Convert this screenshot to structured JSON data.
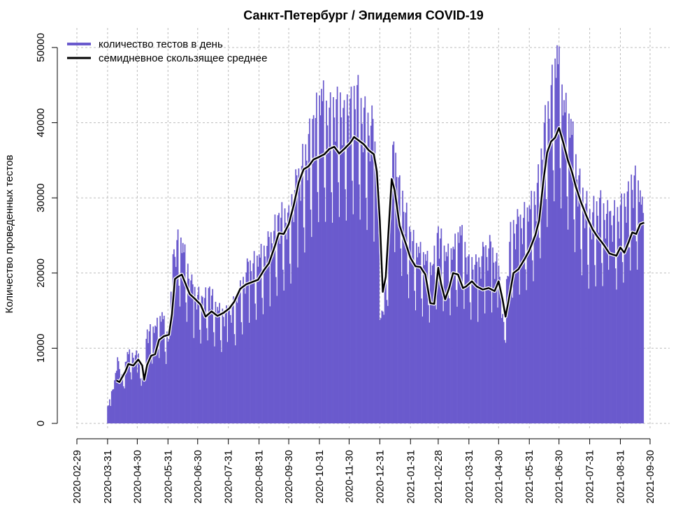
{
  "chart_data": {
    "type": "bar",
    "title": "Санкт-Петербург / Эпидемия COVID-19",
    "xlabel": "",
    "ylabel": "Количество проведенных тестов",
    "ylim": [
      0,
      50000
    ],
    "y_ticks": [
      0,
      10000,
      20000,
      30000,
      40000,
      50000
    ],
    "x_ticks": [
      "2020-02-29",
      "2020-03-31",
      "2020-04-30",
      "2020-05-31",
      "2020-06-30",
      "2020-07-31",
      "2020-08-31",
      "2020-09-30",
      "2020-10-31",
      "2020-11-30",
      "2020-12-31",
      "2021-01-31",
      "2021-02-28",
      "2021-03-31",
      "2021-04-30",
      "2021-05-31",
      "2021-06-30",
      "2021-07-31",
      "2021-08-31",
      "2021-09-30"
    ],
    "xlim": [
      "2020-02-29",
      "2021-09-30"
    ],
    "grid": true,
    "legend_position": "top-left",
    "colors": {
      "bars": "#6a5acd",
      "average": "#000000"
    },
    "series": [
      {
        "name": "количество тестов в день",
        "kind": "bar",
        "description_points": [
          [
            "2020-03-31",
            2300
          ],
          [
            "2020-04-01",
            2400
          ],
          [
            "2020-04-02",
            3200
          ],
          [
            "2020-04-09",
            7000
          ],
          [
            "2020-04-10",
            8800
          ],
          [
            "2020-04-15",
            6200
          ],
          [
            "2020-04-20",
            9500
          ],
          [
            "2020-05-01",
            9300
          ],
          [
            "2020-05-04",
            5000
          ],
          [
            "2020-05-10",
            12500
          ],
          [
            "2020-05-18",
            13000
          ],
          [
            "2020-05-25",
            14800
          ],
          [
            "2020-06-01",
            11200
          ],
          [
            "2020-06-05",
            22500
          ],
          [
            "2020-06-10",
            25800
          ],
          [
            "2020-06-15",
            24000
          ],
          [
            "2020-06-25",
            18500
          ],
          [
            "2020-07-05",
            16800
          ],
          [
            "2020-07-12",
            18200
          ],
          [
            "2020-07-20",
            15500
          ],
          [
            "2020-07-31",
            15000
          ],
          [
            "2020-08-10",
            17500
          ],
          [
            "2020-08-20",
            21500
          ],
          [
            "2020-08-31",
            22500
          ],
          [
            "2020-09-10",
            24800
          ],
          [
            "2020-09-20",
            28000
          ],
          [
            "2020-09-30",
            29000
          ],
          [
            "2020-10-08",
            33000
          ],
          [
            "2020-10-20",
            38500
          ],
          [
            "2020-10-25",
            41000
          ],
          [
            "2020-11-02",
            44500
          ],
          [
            "2020-11-10",
            42000
          ],
          [
            "2020-11-18",
            44800
          ],
          [
            "2020-11-25",
            43000
          ],
          [
            "2020-12-02",
            44800
          ],
          [
            "2020-12-08",
            45000
          ],
          [
            "2020-12-15",
            42000
          ],
          [
            "2020-12-24",
            40500
          ],
          [
            "2020-12-28",
            34500
          ],
          [
            "2021-01-01",
            14000
          ],
          [
            "2021-01-05",
            18000
          ],
          [
            "2021-01-10",
            30000
          ],
          [
            "2021-01-14",
            37500
          ],
          [
            "2021-01-20",
            33000
          ],
          [
            "2021-01-31",
            25500
          ],
          [
            "2021-02-08",
            23500
          ],
          [
            "2021-02-15",
            22500
          ],
          [
            "2021-02-22",
            21000
          ],
          [
            "2021-02-28",
            26200
          ],
          [
            "2021-03-08",
            22800
          ],
          [
            "2021-03-15",
            23500
          ],
          [
            "2021-03-22",
            26200
          ],
          [
            "2021-03-31",
            22500
          ],
          [
            "2021-04-08",
            21500
          ],
          [
            "2021-04-15",
            23500
          ],
          [
            "2021-04-22",
            24200
          ],
          [
            "2021-04-30",
            21000
          ],
          [
            "2021-05-05",
            13500
          ],
          [
            "2021-05-12",
            26800
          ],
          [
            "2021-05-20",
            27500
          ],
          [
            "2021-05-31",
            29000
          ],
          [
            "2021-06-08",
            32000
          ],
          [
            "2021-06-15",
            40000
          ],
          [
            "2021-06-22",
            45000
          ],
          [
            "2021-06-28",
            50300
          ],
          [
            "2021-07-05",
            43000
          ],
          [
            "2021-07-12",
            40500
          ],
          [
            "2021-07-20",
            33000
          ],
          [
            "2021-07-31",
            28500
          ],
          [
            "2021-08-10",
            30000
          ],
          [
            "2021-08-20",
            28200
          ],
          [
            "2021-08-31",
            29000
          ],
          [
            "2021-09-08",
            32200
          ],
          [
            "2021-09-15",
            34300
          ],
          [
            "2021-09-20",
            31000
          ],
          [
            "2021-09-23",
            28000
          ]
        ]
      },
      {
        "name": "семидневное скользящее среднее",
        "kind": "line",
        "points": [
          [
            "2020-04-09",
            5700
          ],
          [
            "2020-04-12",
            5500
          ],
          [
            "2020-04-18",
            6900
          ],
          [
            "2020-04-21",
            7900
          ],
          [
            "2020-04-26",
            7700
          ],
          [
            "2020-05-01",
            8500
          ],
          [
            "2020-05-05",
            7700
          ],
          [
            "2020-05-07",
            5800
          ],
          [
            "2020-05-10",
            7800
          ],
          [
            "2020-05-14",
            9000
          ],
          [
            "2020-05-18",
            9200
          ],
          [
            "2020-05-22",
            11100
          ],
          [
            "2020-05-27",
            11600
          ],
          [
            "2020-06-01",
            11800
          ],
          [
            "2020-06-04",
            14500
          ],
          [
            "2020-06-07",
            19200
          ],
          [
            "2020-06-10",
            19500
          ],
          [
            "2020-06-14",
            19800
          ],
          [
            "2020-06-18",
            18500
          ],
          [
            "2020-06-22",
            17200
          ],
          [
            "2020-06-27",
            16600
          ],
          [
            "2020-07-03",
            15800
          ],
          [
            "2020-07-08",
            14200
          ],
          [
            "2020-07-14",
            14900
          ],
          [
            "2020-07-20",
            14300
          ],
          [
            "2020-07-26",
            14700
          ],
          [
            "2020-08-01",
            15300
          ],
          [
            "2020-08-06",
            16200
          ],
          [
            "2020-08-12",
            17900
          ],
          [
            "2020-08-18",
            18500
          ],
          [
            "2020-08-24",
            18800
          ],
          [
            "2020-08-30",
            19100
          ],
          [
            "2020-09-05",
            20400
          ],
          [
            "2020-09-10",
            21300
          ],
          [
            "2020-09-16",
            23600
          ],
          [
            "2020-09-20",
            25300
          ],
          [
            "2020-09-25",
            25200
          ],
          [
            "2020-09-30",
            26500
          ],
          [
            "2020-10-05",
            29000
          ],
          [
            "2020-10-10",
            32000
          ],
          [
            "2020-10-15",
            33800
          ],
          [
            "2020-10-20",
            34200
          ],
          [
            "2020-10-25",
            35100
          ],
          [
            "2020-10-30",
            35400
          ],
          [
            "2020-11-05",
            35800
          ],
          [
            "2020-11-10",
            36500
          ],
          [
            "2020-11-15",
            36800
          ],
          [
            "2020-11-20",
            35900
          ],
          [
            "2020-11-25",
            36500
          ],
          [
            "2020-12-01",
            37300
          ],
          [
            "2020-12-05",
            38100
          ],
          [
            "2020-12-10",
            37600
          ],
          [
            "2020-12-15",
            37100
          ],
          [
            "2020-12-20",
            36300
          ],
          [
            "2020-12-25",
            35800
          ],
          [
            "2020-12-28",
            33500
          ],
          [
            "2020-12-31",
            27000
          ],
          [
            "2021-01-03",
            17500
          ],
          [
            "2021-01-06",
            19500
          ],
          [
            "2021-01-09",
            26000
          ],
          [
            "2021-01-12",
            32500
          ],
          [
            "2021-01-15",
            31000
          ],
          [
            "2021-01-20",
            26300
          ],
          [
            "2021-01-26",
            24000
          ],
          [
            "2021-01-31",
            22000
          ],
          [
            "2021-02-05",
            20900
          ],
          [
            "2021-02-10",
            20800
          ],
          [
            "2021-02-15",
            19800
          ],
          [
            "2021-02-20",
            16000
          ],
          [
            "2021-02-24",
            15900
          ],
          [
            "2021-02-28",
            20700
          ],
          [
            "2021-03-03",
            18500
          ],
          [
            "2021-03-07",
            16500
          ],
          [
            "2021-03-11",
            18000
          ],
          [
            "2021-03-15",
            20000
          ],
          [
            "2021-03-20",
            19800
          ],
          [
            "2021-03-25",
            18000
          ],
          [
            "2021-03-28",
            18200
          ],
          [
            "2021-04-03",
            18900
          ],
          [
            "2021-04-08",
            18200
          ],
          [
            "2021-04-14",
            17800
          ],
          [
            "2021-04-20",
            18000
          ],
          [
            "2021-04-26",
            17600
          ],
          [
            "2021-04-30",
            18900
          ],
          [
            "2021-05-04",
            16500
          ],
          [
            "2021-05-07",
            14200
          ],
          [
            "2021-05-11",
            17000
          ],
          [
            "2021-05-15",
            20000
          ],
          [
            "2021-05-20",
            20500
          ],
          [
            "2021-05-26",
            21800
          ],
          [
            "2021-05-31",
            23000
          ],
          [
            "2021-06-06",
            25000
          ],
          [
            "2021-06-10",
            27000
          ],
          [
            "2021-06-14",
            32000
          ],
          [
            "2021-06-18",
            36000
          ],
          [
            "2021-06-22",
            37500
          ],
          [
            "2021-06-26",
            38000
          ],
          [
            "2021-06-30",
            39300
          ],
          [
            "2021-07-04",
            37500
          ],
          [
            "2021-07-09",
            35000
          ],
          [
            "2021-07-13",
            33500
          ],
          [
            "2021-07-17",
            31500
          ],
          [
            "2021-07-22",
            29500
          ],
          [
            "2021-07-28",
            27500
          ],
          [
            "2021-08-03",
            25800
          ],
          [
            "2021-08-08",
            24800
          ],
          [
            "2021-08-14",
            23800
          ],
          [
            "2021-08-20",
            22600
          ],
          [
            "2021-08-27",
            22300
          ],
          [
            "2021-08-31",
            23400
          ],
          [
            "2021-09-04",
            22700
          ],
          [
            "2021-09-08",
            24000
          ],
          [
            "2021-09-12",
            25400
          ],
          [
            "2021-09-16",
            25200
          ],
          [
            "2021-09-20",
            26500
          ],
          [
            "2021-09-24",
            26700
          ]
        ]
      }
    ]
  }
}
